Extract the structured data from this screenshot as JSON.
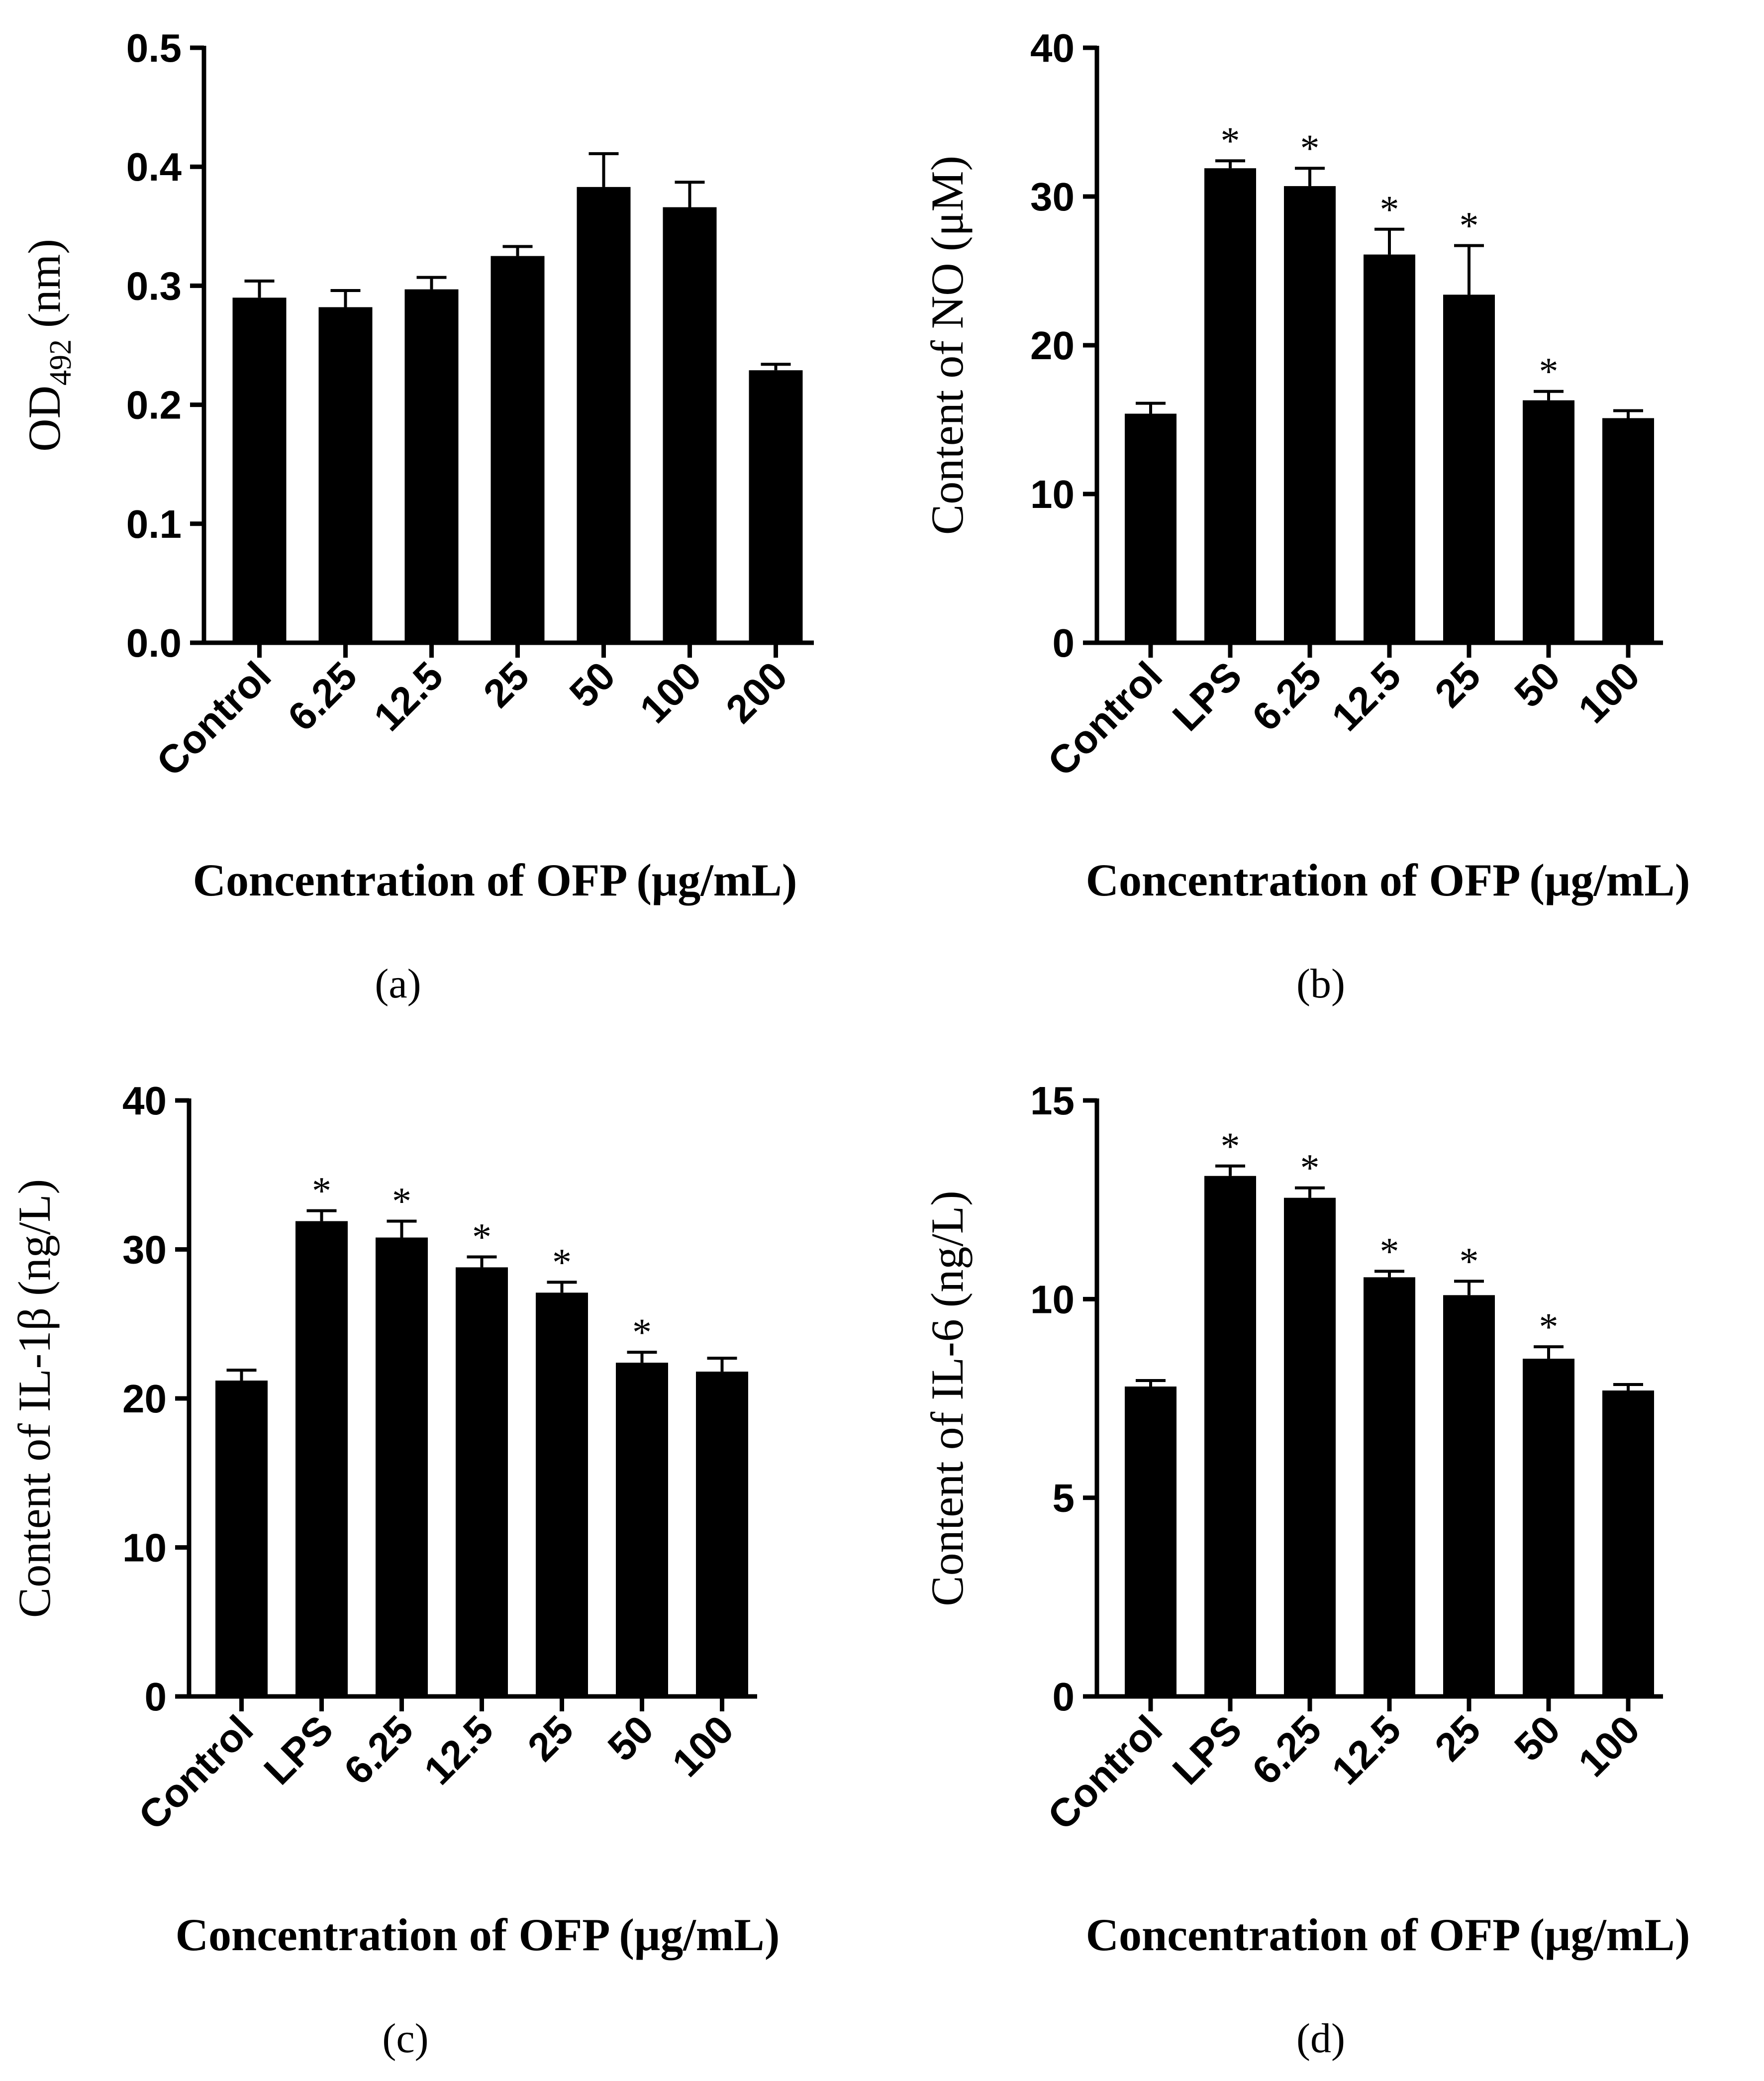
{
  "chart_data": [
    {
      "panel": "a",
      "panel_label": "(a)",
      "type": "bar",
      "ylabel": "OD",
      "ylabel_sub": "492",
      "ylabel_suffix": " (nm)",
      "xlabel": "Concentration of OFP (μg/mL)",
      "ylim": [
        0,
        0.5
      ],
      "yticks": [
        "0.0",
        "0.1",
        "0.2",
        "0.3",
        "0.4",
        "0.5"
      ],
      "categories": [
        "Control",
        "6.25",
        "12.5",
        "25",
        "50",
        "100",
        "200"
      ],
      "values": [
        0.29,
        0.282,
        0.297,
        0.325,
        0.383,
        0.366,
        0.229
      ],
      "errors": [
        0.014,
        0.014,
        0.01,
        0.008,
        0.028,
        0.021,
        0.005
      ],
      "significance": [
        "",
        "",
        "",
        "",
        "",
        "",
        ""
      ]
    },
    {
      "panel": "b",
      "panel_label": "(b)",
      "type": "bar",
      "ylabel": "Content of NO (μM)",
      "xlabel": "Concentration of OFP (μg/mL)",
      "ylim": [
        0,
        40
      ],
      "yticks": [
        "0",
        "10",
        "20",
        "30",
        "40"
      ],
      "categories": [
        "Control",
        "LPS",
        "6.25",
        "12.5",
        "25",
        "50",
        "100"
      ],
      "values": [
        15.4,
        31.9,
        30.7,
        26.1,
        23.4,
        16.3,
        15.1
      ],
      "errors": [
        0.7,
        0.5,
        1.2,
        1.7,
        3.3,
        0.6,
        0.5
      ],
      "significance": [
        "",
        "*",
        "*",
        "*",
        "*",
        "*",
        ""
      ]
    },
    {
      "panel": "c",
      "panel_label": "(c)",
      "type": "bar",
      "ylabel": "Content of IL-1β (ng/L)",
      "xlabel": "Concentration of OFP (μg/mL)",
      "ylim": [
        0,
        40
      ],
      "yticks": [
        "0",
        "10",
        "20",
        "30",
        "40"
      ],
      "categories": [
        "Control",
        "LPS",
        "6.25",
        "12.5",
        "25",
        "50",
        "100"
      ],
      "values": [
        21.2,
        31.9,
        30.8,
        28.8,
        27.1,
        22.4,
        21.8
      ],
      "errors": [
        0.7,
        0.7,
        1.1,
        0.7,
        0.7,
        0.7,
        0.9
      ],
      "significance": [
        "",
        "*",
        "*",
        "*",
        "*",
        "*",
        ""
      ]
    },
    {
      "panel": "d",
      "panel_label": "(d)",
      "type": "bar",
      "ylabel": "Content of IL-6 (ng/L)",
      "xlabel": "Concentration of OFP (μg/mL)",
      "ylim": [
        0,
        15
      ],
      "yticks": [
        "0",
        "5",
        "10",
        "15"
      ],
      "categories": [
        "Control",
        "LPS",
        "6.25",
        "12.5",
        "25",
        "50",
        "100"
      ],
      "values": [
        7.8,
        13.1,
        12.55,
        10.55,
        10.1,
        8.5,
        7.7
      ],
      "errors": [
        0.15,
        0.25,
        0.25,
        0.15,
        0.35,
        0.3,
        0.15
      ],
      "significance": [
        "",
        "*",
        "*",
        "*",
        "*",
        "*",
        ""
      ]
    }
  ]
}
